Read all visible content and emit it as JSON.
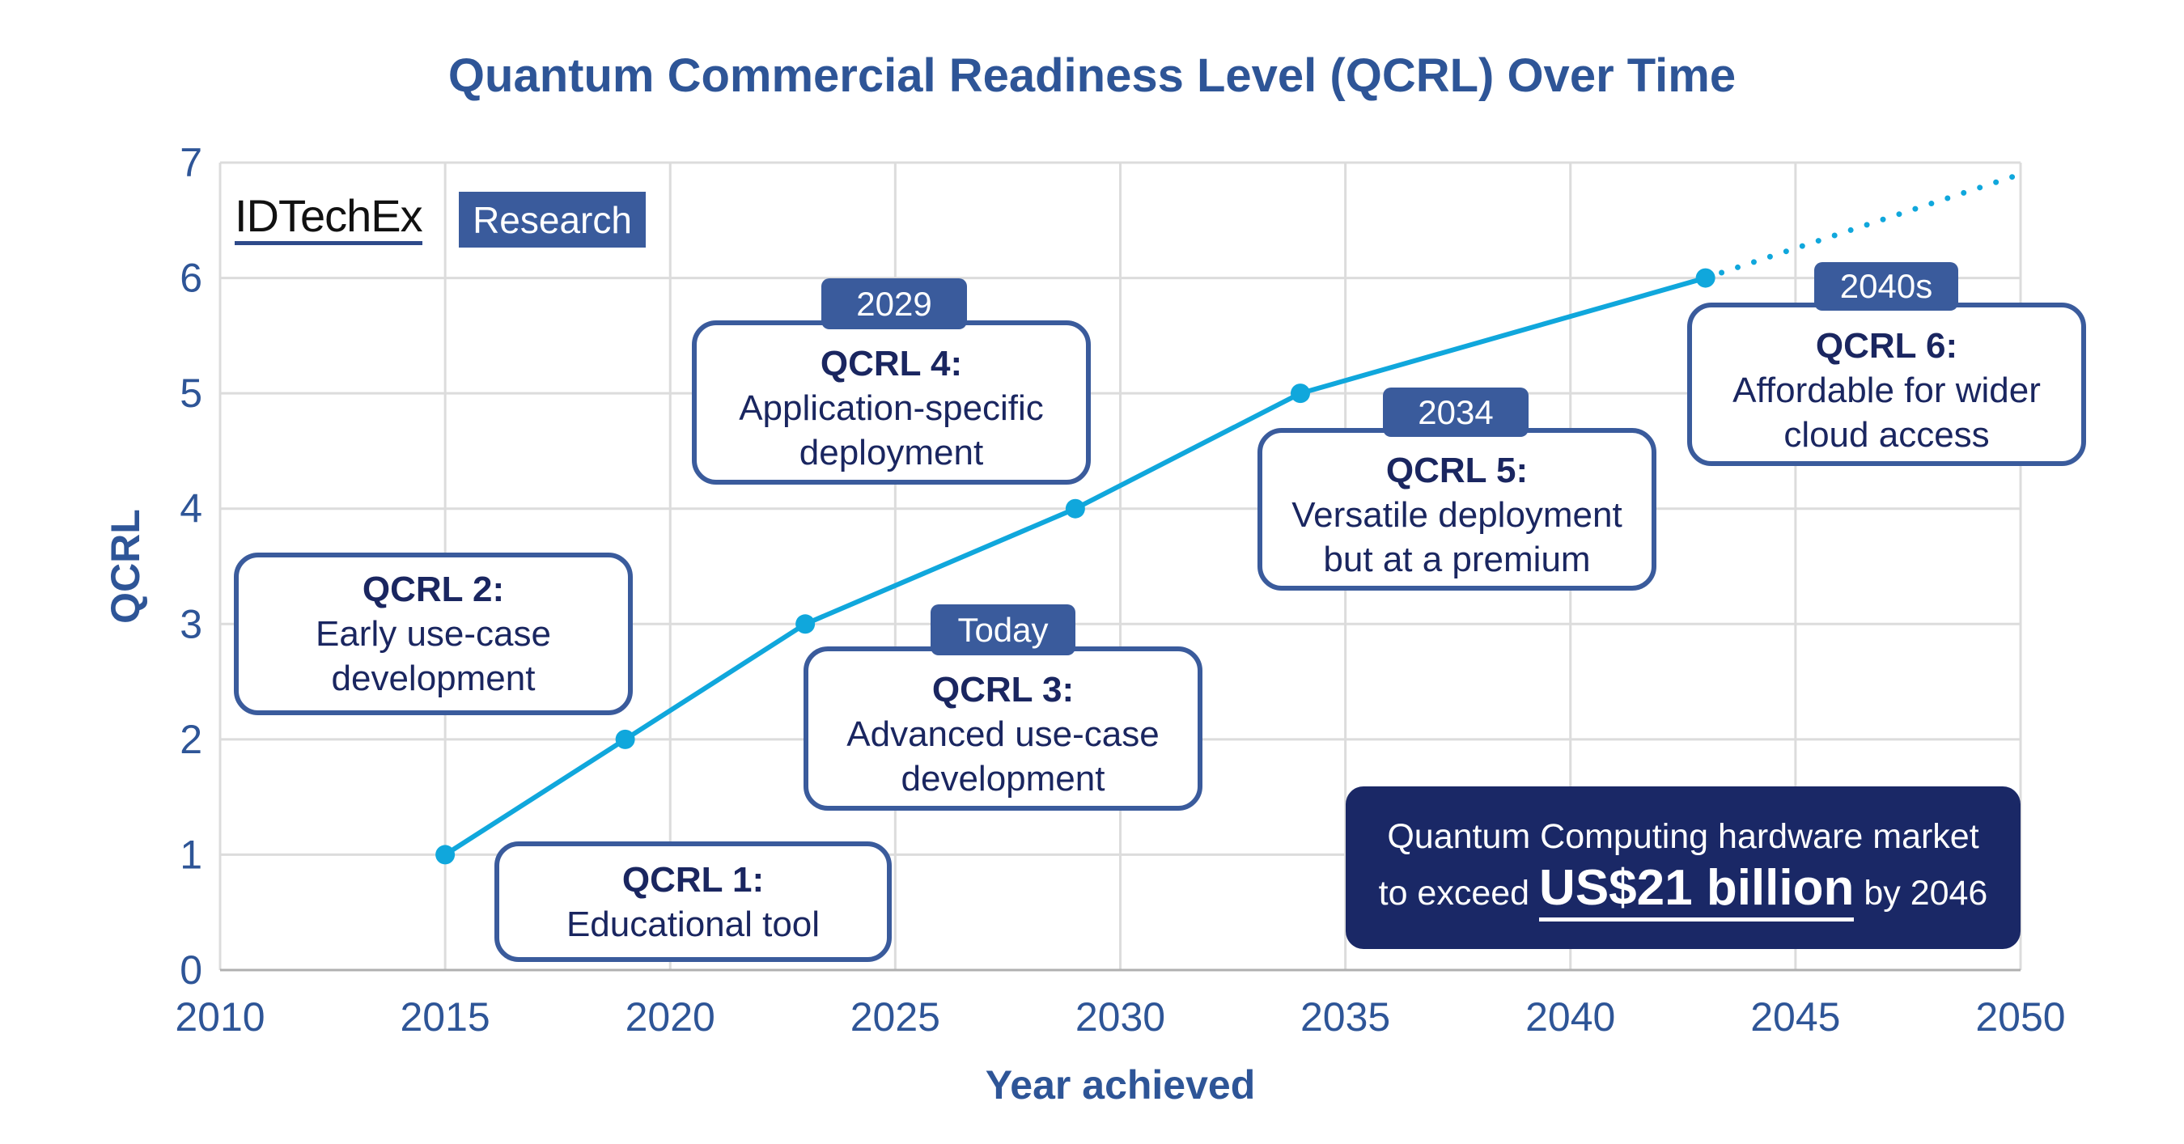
{
  "chart_data": {
    "type": "line",
    "title": "Quantum Commercial Readiness Level (QCRL) Over Time",
    "xlabel": "Year achieved",
    "ylabel": "QCRL",
    "xlim": [
      2010,
      2050
    ],
    "ylim": [
      0,
      7
    ],
    "xticks": [
      "2010",
      "2015",
      "2020",
      "2025",
      "2030",
      "2035",
      "2040",
      "2045",
      "2050"
    ],
    "yticks": [
      "0",
      "1",
      "2",
      "3",
      "4",
      "5",
      "6",
      "7"
    ],
    "grid": true,
    "series": [
      {
        "x": [
          2015,
          2019,
          2023,
          2029,
          2034,
          2043
        ],
        "y": [
          1,
          2,
          3,
          4,
          5,
          6
        ],
        "style": "solid"
      }
    ],
    "projection": {
      "x": [
        2043,
        2050
      ],
      "y": [
        6,
        6.9
      ],
      "style": "dotted"
    },
    "colors": {
      "line": "#10a7dc",
      "title": "#2e5597",
      "box": "#3a5b9c",
      "text": "#1a2660",
      "market": "#1a2866"
    },
    "annotations": [
      {
        "tag": "",
        "heading": "QCRL 1:",
        "lines": [
          "Educational tool"
        ]
      },
      {
        "tag": "",
        "heading": "QCRL 2:",
        "lines": [
          "Early use-case",
          "development"
        ]
      },
      {
        "tag": "Today",
        "heading": "QCRL 3:",
        "lines": [
          "Advanced use-case",
          "development"
        ]
      },
      {
        "tag": "2029",
        "heading": "QCRL 4:",
        "lines": [
          "Application-specific",
          "deployment"
        ]
      },
      {
        "tag": "2034",
        "heading": "QCRL 5:",
        "lines": [
          "Versatile deployment",
          "but at a premium"
        ]
      },
      {
        "tag": "2040s",
        "heading": "QCRL 6:",
        "lines": [
          "Affordable for wider",
          "cloud access"
        ]
      }
    ],
    "callout": {
      "line1": "Quantum Computing hardware market",
      "pre": "to exceed",
      "highlight": "US$21 billion",
      "post": "by 2046"
    }
  },
  "logo": {
    "brand": "IDTechEx",
    "product": "Research"
  }
}
